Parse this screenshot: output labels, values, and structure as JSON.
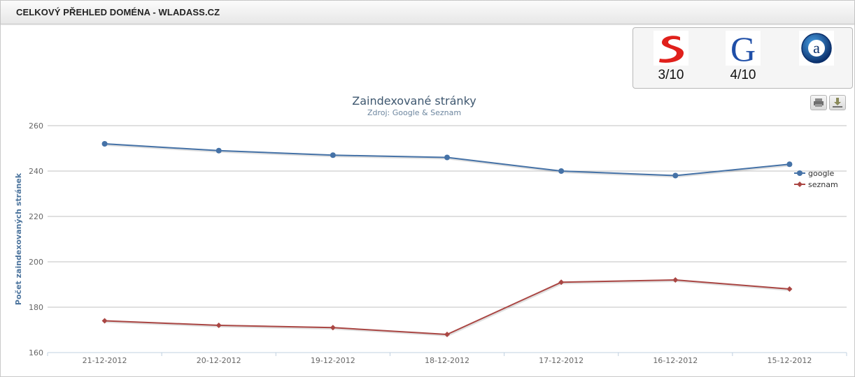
{
  "header": {
    "title": "CELKOVÝ PŘEHLED DOMÉNA - WLADASS.CZ"
  },
  "ranks": [
    {
      "name": "seznam-srank",
      "icon": "seznam-s-logo-icon",
      "value": "3/10",
      "color": "#d62b2b"
    },
    {
      "name": "google-pagerank",
      "icon": "google-g-logo-icon",
      "value": "4/10",
      "color": "#1f4fa8"
    },
    {
      "name": "alexa-rank",
      "icon": "alexa-a-logo-icon",
      "value": "",
      "color": "#0b3b78"
    }
  ],
  "toolbar": {
    "print_icon": "print-icon",
    "export_icon": "download-icon"
  },
  "chart_data": {
    "type": "line",
    "title": "Zaindexované stránky",
    "subtitle": "Zdroj: Google & Seznam",
    "xlabel": "",
    "ylabel": "Počet zaindexovaných stránek",
    "categories": [
      "21-12-2012",
      "20-12-2012",
      "19-12-2012",
      "18-12-2012",
      "17-12-2012",
      "16-12-2012",
      "15-12-2012"
    ],
    "yticks": [
      160,
      180,
      200,
      220,
      240,
      260
    ],
    "ylim": [
      160,
      260
    ],
    "grid": true,
    "legend": "right",
    "series": [
      {
        "name": "google",
        "values": [
          252,
          249,
          247,
          246,
          240,
          238,
          243
        ],
        "color": "#4572a7",
        "marker": "circle"
      },
      {
        "name": "seznam",
        "values": [
          174,
          172,
          171,
          168,
          191,
          192,
          188
        ],
        "color": "#aa4643",
        "marker": "diamond"
      }
    ]
  }
}
